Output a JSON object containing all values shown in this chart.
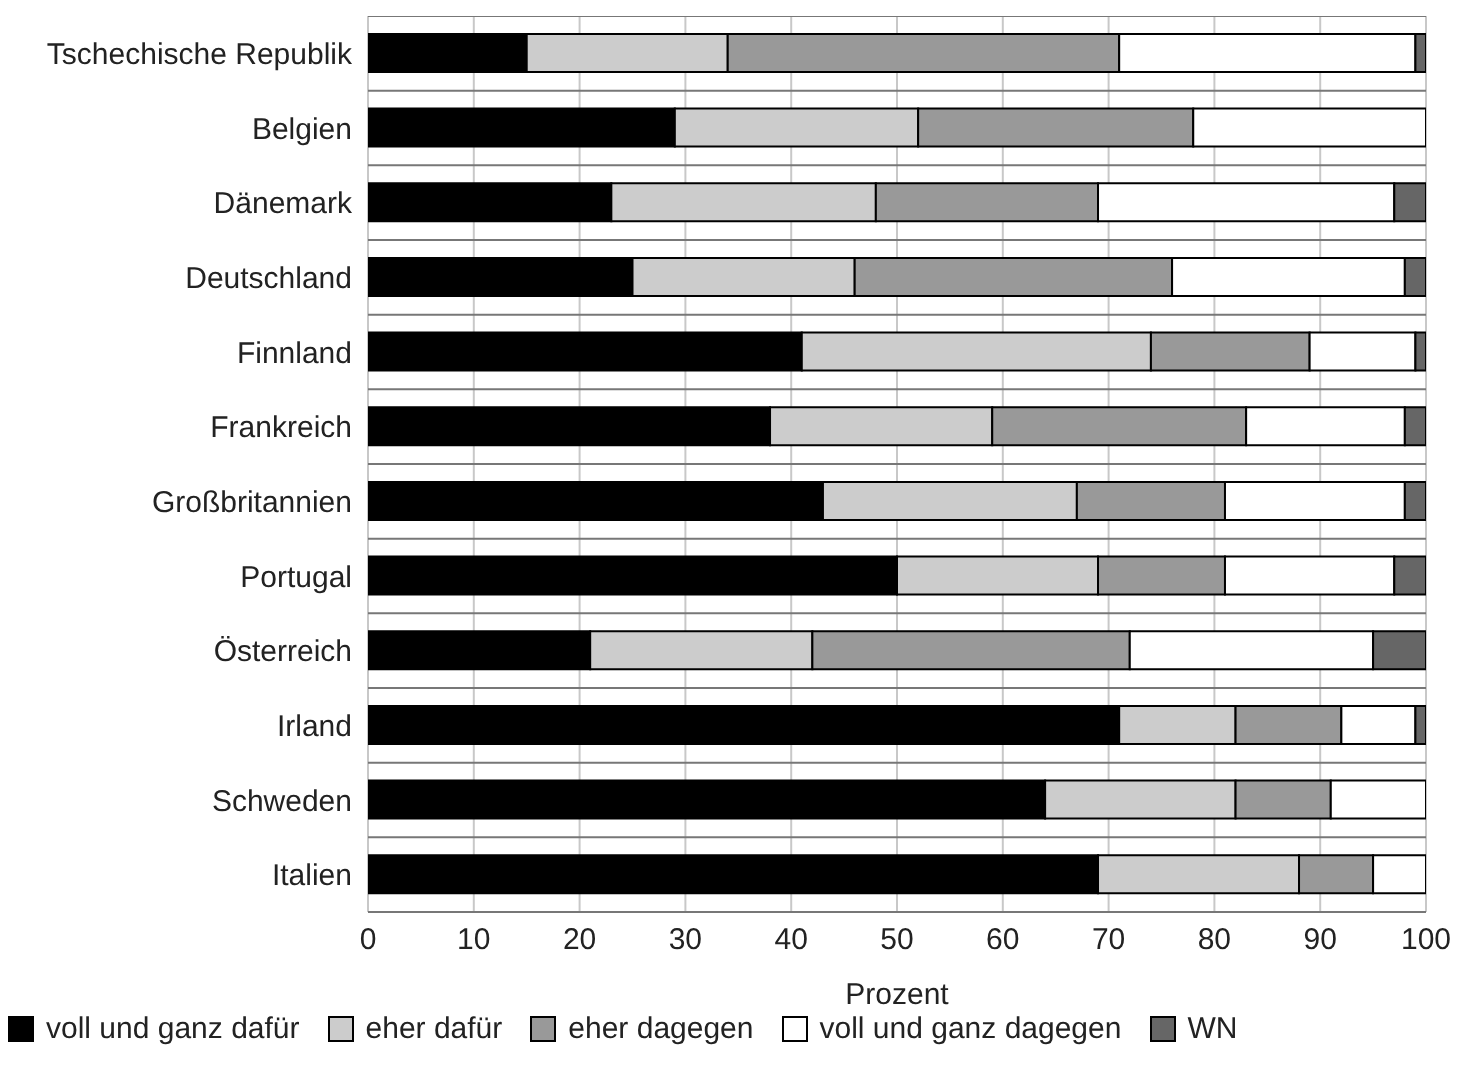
{
  "chart_data": {
    "type": "bar",
    "orientation": "horizontal",
    "stacked": true,
    "xlabel": "Prozent",
    "categories": [
      "Tschechische Republik",
      "Belgien",
      "Dänemark",
      "Deutschland",
      "Finnland",
      "Frankreich",
      "Großbritannien",
      "Portugal",
      "Österreich",
      "Irland",
      "Schweden",
      "Italien"
    ],
    "series": [
      {
        "name": "voll und ganz dafür",
        "color": "#000000",
        "values": [
          15,
          29,
          23,
          25,
          41,
          38,
          43,
          50,
          21,
          71,
          64,
          69
        ]
      },
      {
        "name": "eher dafür",
        "color": "#cccccc",
        "values": [
          19,
          23,
          25,
          21,
          33,
          21,
          24,
          19,
          21,
          11,
          18,
          19
        ]
      },
      {
        "name": "eher dagegen",
        "color": "#999999",
        "values": [
          37,
          26,
          21,
          30,
          15,
          24,
          14,
          12,
          30,
          10,
          9,
          7
        ]
      },
      {
        "name": "voll und ganz dagegen",
        "color": "#ffffff",
        "values": [
          28,
          22,
          28,
          22,
          10,
          15,
          17,
          16,
          23,
          7,
          9,
          5
        ]
      },
      {
        "name": "WN",
        "color": "#666666",
        "values": [
          1,
          0,
          3,
          2,
          1,
          2,
          2,
          3,
          5,
          1,
          0,
          0
        ]
      }
    ],
    "xlim": [
      0,
      100
    ],
    "xticks": [
      0,
      10,
      20,
      30,
      40,
      50,
      60,
      70,
      80,
      90,
      100
    ],
    "grid": true,
    "legend": "bottom"
  }
}
